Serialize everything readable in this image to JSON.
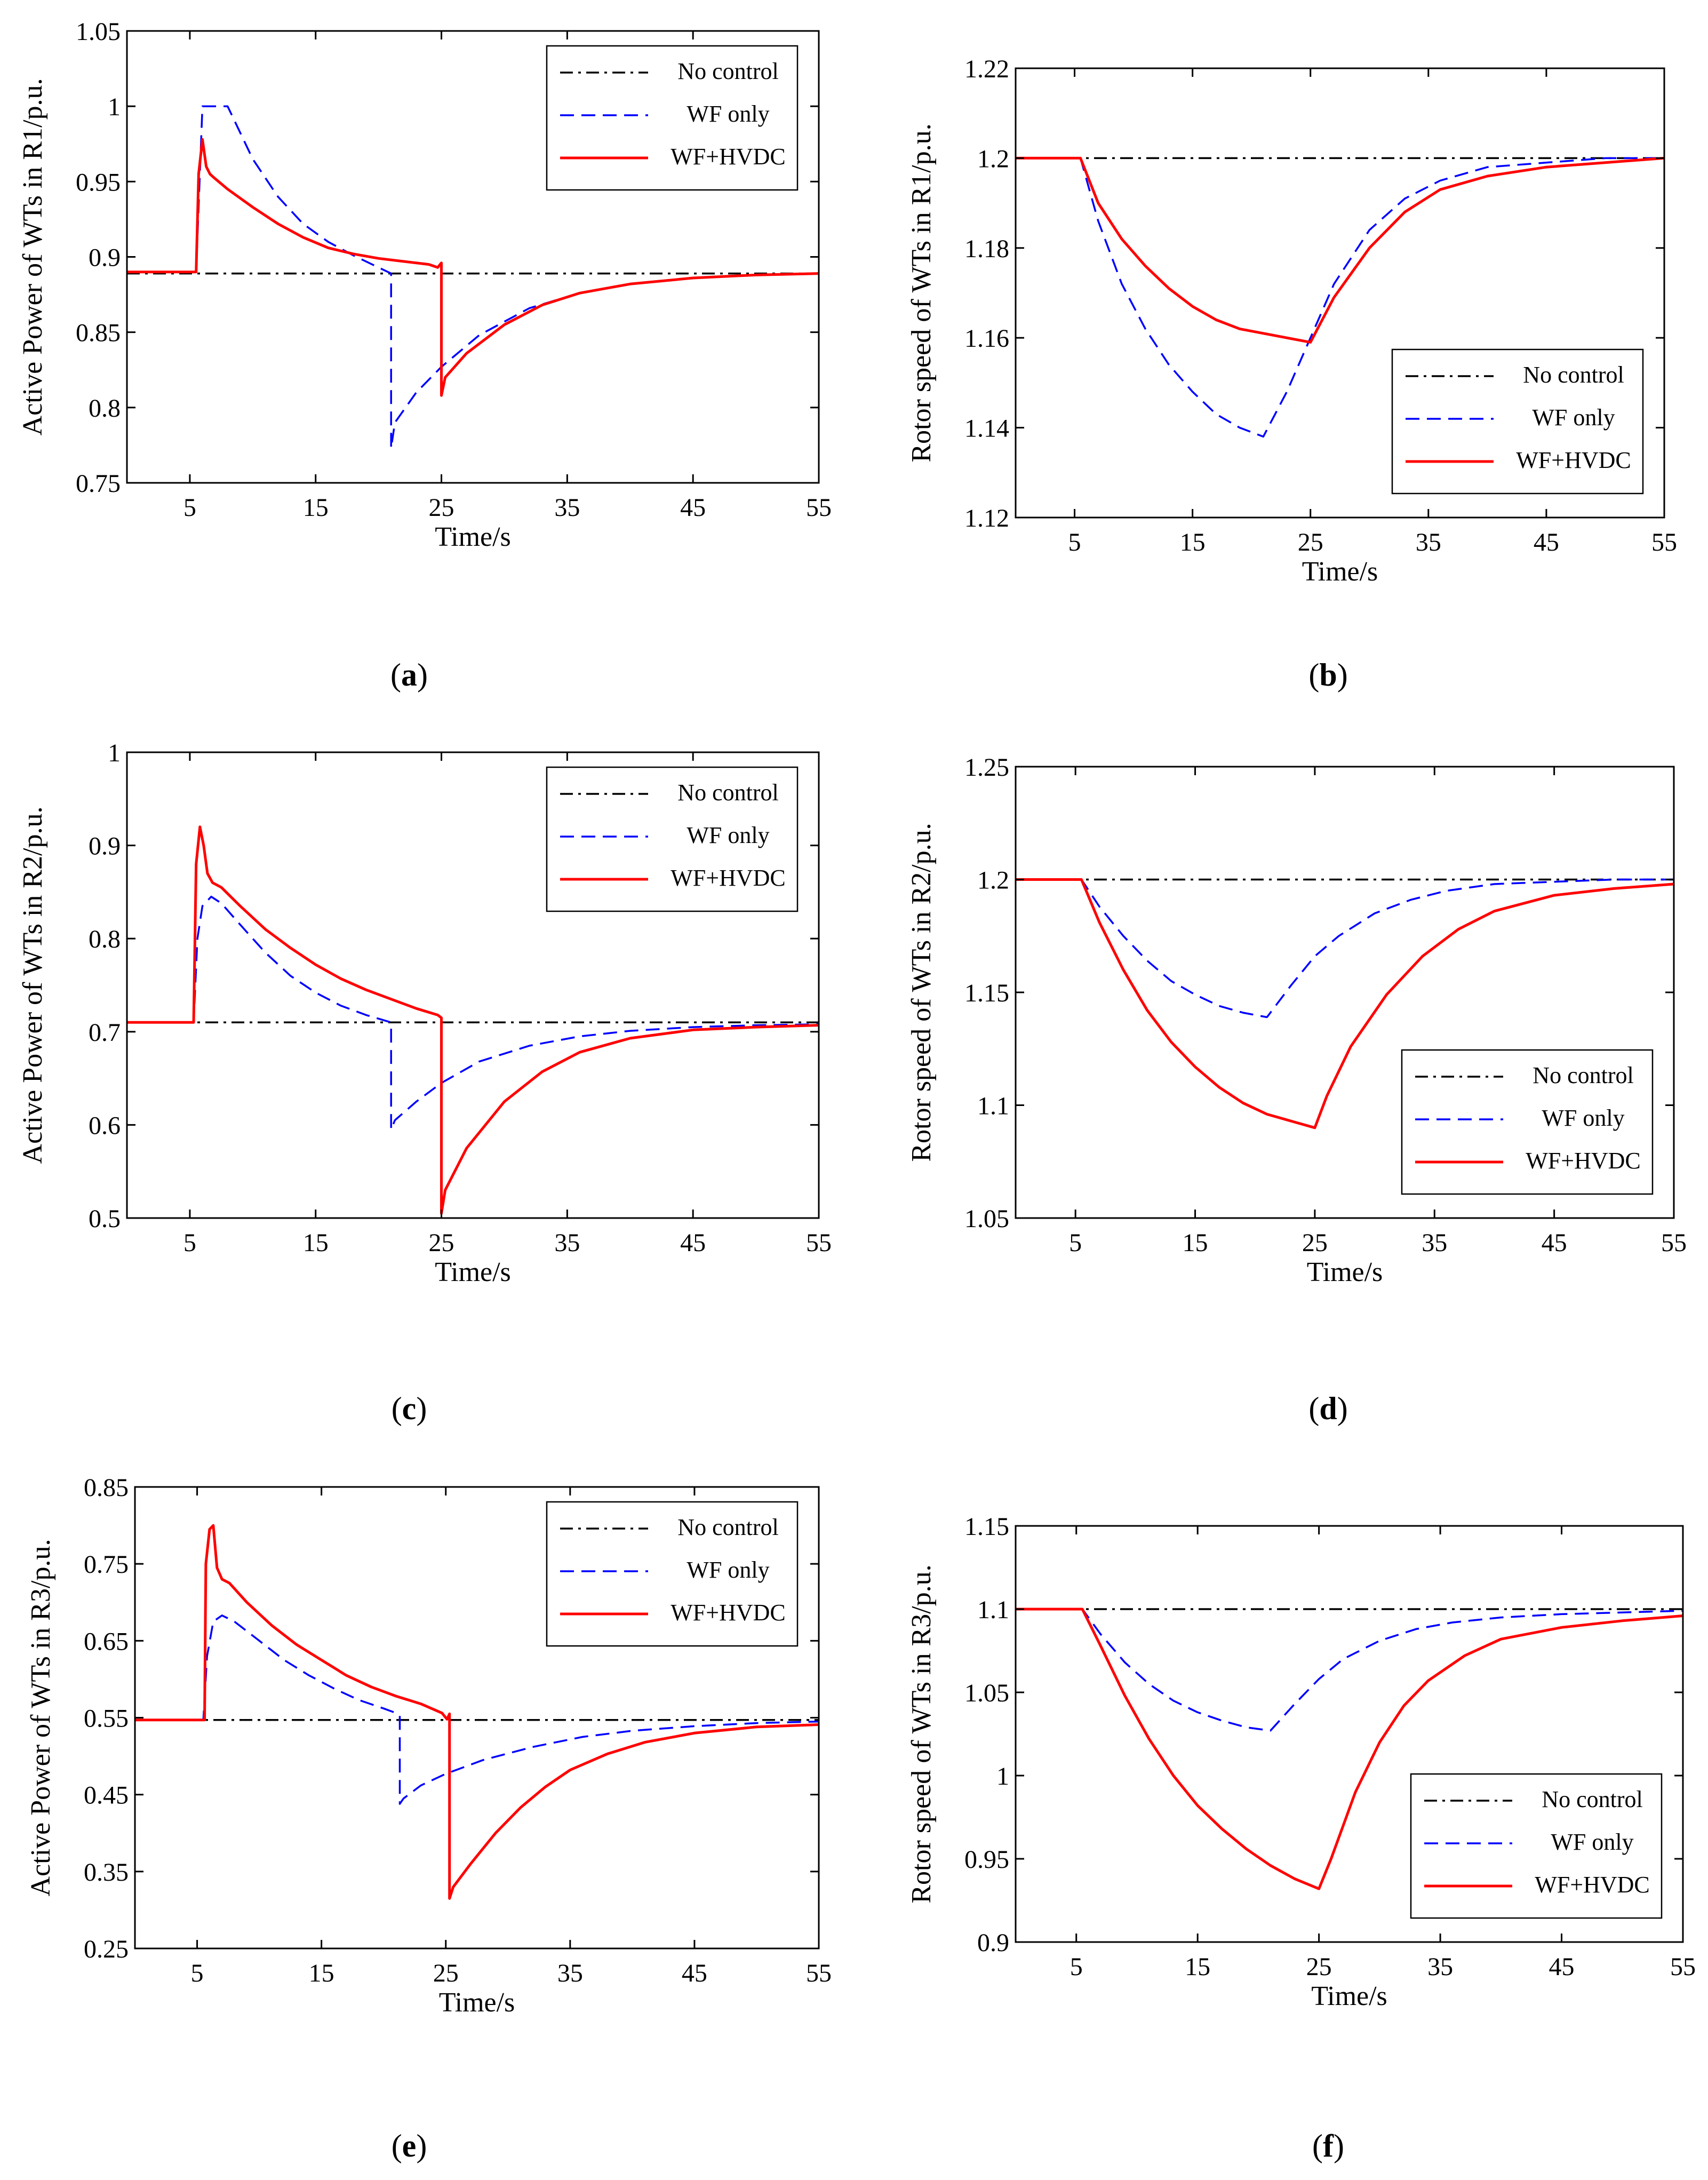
{
  "figure": {
    "panel_count": 6
  },
  "legend_labels": [
    "No control",
    "WF only",
    "WF+HVDC"
  ],
  "series_styles": [
    {
      "name": "No control",
      "color": "#000000",
      "dash": "dashdot"
    },
    {
      "name": "WF only",
      "color": "#0000ff",
      "dash": "dashed"
    },
    {
      "name": "WF+HVDC",
      "color": "#ff0000",
      "dash": "solid"
    }
  ],
  "chart_data": [
    {
      "panel": "(a)",
      "caption_letter": "a",
      "type": "line",
      "title": "",
      "xlabel": "Time/s",
      "ylabel": "Active Power of WTs in R1/p.u.",
      "xlim": [
        0,
        55
      ],
      "ylim": [
        0.75,
        1.05
      ],
      "xticks": [
        5,
        15,
        25,
        35,
        45,
        55
      ],
      "xtick_labels": [
        "5",
        "15",
        "25",
        "35",
        "45",
        "55"
      ],
      "yticks": [
        0.75,
        0.8,
        0.85,
        0.9,
        0.95,
        1.0,
        1.05
      ],
      "ytick_labels": [
        "0.75",
        "0.8",
        "0.85",
        "0.9",
        "0.95",
        "1",
        "1.05"
      ],
      "grid": false,
      "legend_position": "top-right",
      "legend": [
        "No control",
        "WF only",
        "WF+HVDC"
      ],
      "series": [
        {
          "name": "No control",
          "x": [
            0,
            55
          ],
          "y": [
            0.889,
            0.889
          ]
        },
        {
          "name": "WF only",
          "x": [
            0,
            5.5,
            6,
            8,
            10,
            12,
            14,
            16,
            18,
            20,
            21,
            21,
            21.3,
            23,
            25,
            28,
            32,
            36,
            40,
            45,
            50,
            55
          ],
          "y": [
            0.89,
            0.89,
            1.0,
            1.0,
            0.965,
            0.94,
            0.922,
            0.91,
            0.901,
            0.893,
            0.889,
            0.773,
            0.79,
            0.81,
            0.827,
            0.848,
            0.866,
            0.876,
            0.882,
            0.886,
            0.888,
            0.889
          ]
        },
        {
          "name": "WF+HVDC",
          "x": [
            0,
            5.5,
            5.7,
            6,
            6.3,
            6.6,
            7,
            8,
            10,
            12,
            14,
            16,
            18,
            20,
            22,
            24,
            24.7,
            25,
            25,
            25.3,
            27,
            30,
            33,
            36,
            40,
            45,
            50,
            55
          ],
          "y": [
            0.89,
            0.89,
            0.955,
            0.978,
            0.96,
            0.955,
            0.952,
            0.945,
            0.933,
            0.922,
            0.913,
            0.906,
            0.902,
            0.899,
            0.897,
            0.895,
            0.893,
            0.896,
            0.808,
            0.82,
            0.836,
            0.855,
            0.868,
            0.876,
            0.882,
            0.886,
            0.888,
            0.889
          ]
        }
      ]
    },
    {
      "panel": "(b)",
      "caption_letter": "b",
      "type": "line",
      "title": "",
      "xlabel": "Time/s",
      "ylabel": "Rotor speed of WTs in R1/p.u.",
      "xlim": [
        0,
        55
      ],
      "ylim": [
        1.12,
        1.22
      ],
      "xticks": [
        5,
        15,
        25,
        35,
        45,
        55
      ],
      "xtick_labels": [
        "5",
        "15",
        "25",
        "35",
        "45",
        "55"
      ],
      "yticks": [
        1.12,
        1.14,
        1.16,
        1.18,
        1.2,
        1.22
      ],
      "ytick_labels": [
        "1.12",
        "1.14",
        "1.16",
        "1.18",
        "1.2",
        "1.22"
      ],
      "grid": false,
      "legend_position": "bottom-right",
      "legend": [
        "No control",
        "WF only",
        "WF+HVDC"
      ],
      "series": [
        {
          "name": "No control",
          "x": [
            0,
            55
          ],
          "y": [
            1.2,
            1.2
          ]
        },
        {
          "name": "WF only",
          "x": [
            0,
            5.5,
            7,
            9,
            11,
            13,
            15,
            17,
            19,
            21,
            23,
            25,
            27,
            30,
            33,
            36,
            40,
            45,
            50,
            55
          ],
          "y": [
            1.2,
            1.2,
            1.186,
            1.172,
            1.162,
            1.154,
            1.148,
            1.143,
            1.14,
            1.138,
            1.148,
            1.16,
            1.172,
            1.184,
            1.191,
            1.195,
            1.198,
            1.199,
            1.2,
            1.2
          ]
        },
        {
          "name": "WF+HVDC",
          "x": [
            0,
            5.5,
            7,
            9,
            11,
            13,
            15,
            17,
            19,
            21,
            23,
            25,
            27,
            30,
            33,
            36,
            40,
            45,
            50,
            55
          ],
          "y": [
            1.2,
            1.2,
            1.19,
            1.182,
            1.176,
            1.171,
            1.167,
            1.164,
            1.162,
            1.161,
            1.16,
            1.159,
            1.169,
            1.18,
            1.188,
            1.193,
            1.196,
            1.198,
            1.199,
            1.2
          ]
        }
      ]
    },
    {
      "panel": "(c)",
      "caption_letter": "c",
      "type": "line",
      "title": "",
      "xlabel": "Time/s",
      "ylabel": "Active Power of WTs in R2/p.u.",
      "xlim": [
        0,
        55
      ],
      "ylim": [
        0.5,
        1.0
      ],
      "xticks": [
        5,
        15,
        25,
        35,
        45,
        55
      ],
      "xtick_labels": [
        "5",
        "15",
        "25",
        "35",
        "45",
        "55"
      ],
      "yticks": [
        0.5,
        0.6,
        0.7,
        0.8,
        0.9,
        1.0
      ],
      "ytick_labels": [
        "0.5",
        "0.6",
        "0.7",
        "0.8",
        "0.9",
        "1"
      ],
      "grid": false,
      "legend_position": "top-right",
      "legend": [
        "No control",
        "WF only",
        "WF+HVDC"
      ],
      "series": [
        {
          "name": "No control",
          "x": [
            0,
            55
          ],
          "y": [
            0.71,
            0.71
          ]
        },
        {
          "name": "WF only",
          "x": [
            0,
            5.3,
            5.6,
            6,
            6.7,
            7.5,
            9,
            11,
            13,
            15,
            17,
            19,
            21,
            21,
            21.3,
            23,
            25,
            28,
            32,
            36,
            40,
            45,
            50,
            55
          ],
          "y": [
            0.71,
            0.71,
            0.8,
            0.835,
            0.845,
            0.838,
            0.815,
            0.785,
            0.76,
            0.742,
            0.728,
            0.718,
            0.71,
            0.595,
            0.605,
            0.625,
            0.645,
            0.668,
            0.685,
            0.695,
            0.701,
            0.705,
            0.707,
            0.708
          ]
        },
        {
          "name": "WF+HVDC",
          "x": [
            0,
            5.3,
            5.5,
            5.8,
            6.1,
            6.4,
            6.8,
            7.5,
            9,
            11,
            13,
            15,
            17,
            19,
            21,
            23,
            24.7,
            25,
            25,
            25.3,
            27,
            30,
            33,
            36,
            40,
            45,
            50,
            55
          ],
          "y": [
            0.71,
            0.71,
            0.88,
            0.92,
            0.9,
            0.87,
            0.86,
            0.855,
            0.835,
            0.81,
            0.79,
            0.772,
            0.757,
            0.745,
            0.735,
            0.725,
            0.718,
            0.715,
            0.505,
            0.53,
            0.575,
            0.625,
            0.657,
            0.678,
            0.693,
            0.702,
            0.705,
            0.707
          ]
        }
      ]
    },
    {
      "panel": "(d)",
      "caption_letter": "d",
      "type": "line",
      "title": "",
      "xlabel": "Time/s",
      "ylabel": "Rotor speed of WTs in R2/p.u.",
      "xlim": [
        0,
        55
      ],
      "ylim": [
        1.05,
        1.25
      ],
      "xticks": [
        5,
        15,
        25,
        35,
        45,
        55
      ],
      "xtick_labels": [
        "5",
        "15",
        "25",
        "35",
        "45",
        "55"
      ],
      "yticks": [
        1.05,
        1.1,
        1.15,
        1.2,
        1.25
      ],
      "ytick_labels": [
        "1.05",
        "1.1",
        "1.15",
        "1.2",
        "1.25"
      ],
      "grid": false,
      "legend_position": "bottom-right",
      "legend": [
        "No control",
        "WF only",
        "WF+HVDC"
      ],
      "series": [
        {
          "name": "No control",
          "x": [
            0,
            55
          ],
          "y": [
            1.2,
            1.2
          ]
        },
        {
          "name": "WF only",
          "x": [
            0,
            5.5,
            7,
            9,
            11,
            13,
            15,
            17,
            19,
            21,
            23,
            25,
            27,
            30,
            33,
            36,
            40,
            45,
            50,
            55
          ],
          "y": [
            1.2,
            1.2,
            1.188,
            1.175,
            1.164,
            1.155,
            1.149,
            1.144,
            1.141,
            1.139,
            1.153,
            1.166,
            1.175,
            1.185,
            1.191,
            1.195,
            1.198,
            1.199,
            1.2,
            1.2
          ]
        },
        {
          "name": "WF+HVDC",
          "x": [
            0,
            5.5,
            7,
            9,
            11,
            13,
            15,
            17,
            19,
            21,
            23,
            25,
            26,
            28,
            31,
            34,
            37,
            40,
            45,
            50,
            55
          ],
          "y": [
            1.2,
            1.2,
            1.181,
            1.16,
            1.142,
            1.128,
            1.117,
            1.108,
            1.101,
            1.096,
            1.093,
            1.09,
            1.104,
            1.126,
            1.149,
            1.166,
            1.178,
            1.186,
            1.193,
            1.196,
            1.198
          ]
        }
      ]
    },
    {
      "panel": "(e)",
      "caption_letter": "e",
      "type": "line",
      "title": "",
      "xlabel": "Time/s",
      "ylabel": "Active Power of WTs in R3/p.u.",
      "xlim": [
        0,
        55
      ],
      "ylim": [
        0.25,
        0.85
      ],
      "xticks": [
        5,
        15,
        25,
        35,
        45,
        55
      ],
      "xtick_labels": [
        "5",
        "15",
        "25",
        "35",
        "45",
        "55"
      ],
      "yticks": [
        0.25,
        0.35,
        0.45,
        0.55,
        0.65,
        0.75,
        0.85
      ],
      "ytick_labels": [
        "0.25",
        "0.35",
        "0.45",
        "0.55",
        "0.65",
        "0.75",
        "0.85"
      ],
      "grid": false,
      "legend_position": "top-right",
      "legend": [
        "No control",
        "WF only",
        "WF+HVDC"
      ],
      "series": [
        {
          "name": "No control",
          "x": [
            0,
            55
          ],
          "y": [
            0.547,
            0.547
          ]
        },
        {
          "name": "WF only",
          "x": [
            0,
            5.5,
            5.8,
            6.3,
            7,
            8,
            10,
            12,
            14,
            16,
            18,
            20,
            21,
            21.3,
            21.3,
            21.6,
            23,
            25,
            28,
            32,
            36,
            40,
            45,
            50,
            55
          ],
          "y": [
            0.547,
            0.547,
            0.63,
            0.675,
            0.683,
            0.675,
            0.65,
            0.625,
            0.605,
            0.588,
            0.573,
            0.562,
            0.556,
            0.553,
            0.438,
            0.445,
            0.462,
            0.477,
            0.495,
            0.512,
            0.525,
            0.533,
            0.539,
            0.543,
            0.545
          ]
        },
        {
          "name": "WF+HVDC",
          "x": [
            0,
            5.6,
            5.7,
            6.0,
            6.3,
            6.6,
            7.0,
            7.6,
            9,
            11,
            13,
            15,
            17,
            19,
            21,
            23,
            24.7,
            25.1,
            25.3,
            25.3,
            25.6,
            27,
            29,
            31,
            33,
            35,
            38,
            41,
            45,
            50,
            55
          ],
          "y": [
            0.547,
            0.547,
            0.75,
            0.795,
            0.8,
            0.745,
            0.73,
            0.725,
            0.7,
            0.67,
            0.645,
            0.625,
            0.605,
            0.59,
            0.578,
            0.568,
            0.556,
            0.548,
            0.555,
            0.315,
            0.33,
            0.36,
            0.4,
            0.433,
            0.46,
            0.482,
            0.503,
            0.518,
            0.53,
            0.538,
            0.541
          ]
        }
      ]
    },
    {
      "panel": "(f)",
      "caption_letter": "f",
      "type": "line",
      "title": "",
      "xlabel": "Time/s",
      "ylabel": "Rotor speed of WTs in R3/p.u.",
      "xlim": [
        0,
        55
      ],
      "ylim": [
        0.9,
        1.15
      ],
      "xticks": [
        5,
        15,
        25,
        35,
        45,
        55
      ],
      "xtick_labels": [
        "5",
        "15",
        "25",
        "35",
        "45",
        "55"
      ],
      "yticks": [
        0.9,
        0.95,
        1.0,
        1.05,
        1.1,
        1.15
      ],
      "ytick_labels": [
        "0.9",
        "0.95",
        "1",
        "1.05",
        "1.1",
        "1.15"
      ],
      "grid": false,
      "legend_position": "bottom-right",
      "legend": [
        "No control",
        "WF only",
        "WF+HVDC"
      ],
      "series": [
        {
          "name": "No control",
          "x": [
            0,
            55
          ],
          "y": [
            1.1,
            1.1
          ]
        },
        {
          "name": "WF only",
          "x": [
            0,
            5.5,
            7,
            9,
            11,
            13,
            15,
            17,
            19,
            21,
            23,
            25,
            27,
            30,
            33,
            36,
            40,
            45,
            50,
            55
          ],
          "y": [
            1.1,
            1.1,
            1.085,
            1.068,
            1.055,
            1.045,
            1.038,
            1.033,
            1.029,
            1.027,
            1.043,
            1.058,
            1.07,
            1.081,
            1.088,
            1.092,
            1.095,
            1.097,
            1.098,
            1.099
          ]
        },
        {
          "name": "WF+HVDC",
          "x": [
            0,
            5.5,
            7,
            9,
            11,
            13,
            15,
            17,
            19,
            21,
            23,
            25,
            26,
            28,
            30,
            32,
            34,
            37,
            40,
            45,
            50,
            55
          ],
          "y": [
            1.1,
            1.1,
            1.078,
            1.048,
            1.022,
            1.0,
            0.982,
            0.968,
            0.956,
            0.946,
            0.938,
            0.932,
            0.95,
            0.99,
            1.02,
            1.042,
            1.057,
            1.072,
            1.082,
            1.089,
            1.093,
            1.096
          ]
        }
      ]
    }
  ]
}
